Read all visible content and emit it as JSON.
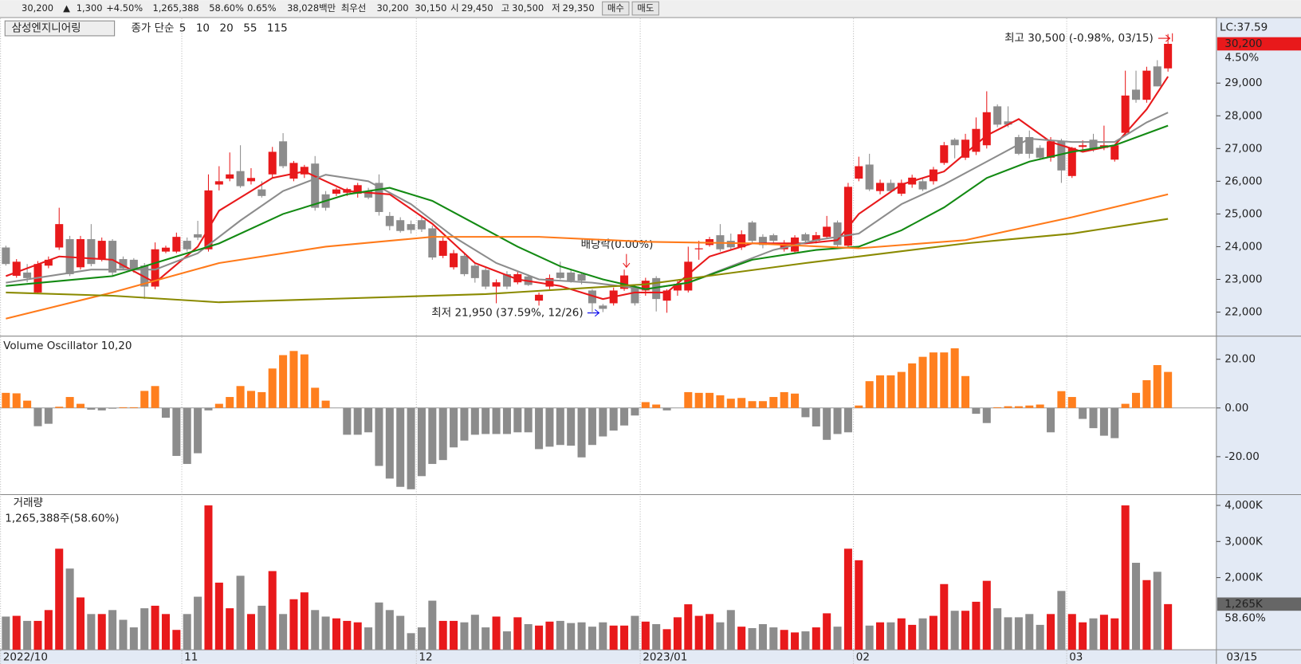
{
  "toolbar": {
    "price": "30,200",
    "arrow": "▲",
    "change": "1,300",
    "change_pct": "+4.50%",
    "volume": "1,265,388",
    "volume_ratio": "58.60%",
    "turnover": "0.65%",
    "amount": "38,028백만",
    "best_label": "최우선",
    "best_ask": "30,200",
    "best_bid": "30,150",
    "open_label": "시",
    "open": "29,450",
    "high_label": "고",
    "high": "30,500",
    "low_label": "저",
    "low": "29,350",
    "buy": "매수",
    "sell": "매도"
  },
  "chart_data": [
    {
      "type": "candlestick",
      "title": "삼성엔지니어링",
      "legend_label": "종가 단순",
      "open": [
        23975,
        23110,
        23210,
        22600,
        23420,
        23975,
        24230,
        23370,
        24230,
        23620,
        24180,
        23620,
        23600,
        23420,
        22780,
        23850,
        23850,
        24180,
        24380,
        23920,
        25900,
        26080,
        26310,
        26000,
        25750,
        26210,
        27220,
        26080,
        26210,
        26540,
        25600,
        25620,
        25650,
        25620,
        25700,
        25950,
        24940,
        24810,
        24690,
        24810,
        24560,
        23720,
        23370,
        23720,
        23420,
        23290,
        22780,
        23160,
        22910,
        23090,
        22350,
        22780,
        23210,
        23210,
        23160,
        22660,
        22200,
        22270,
        22710,
        22780,
        22660,
        23040,
        22350,
        22660,
        22660,
        23920,
        24050,
        24350,
        24180,
        23980,
        24740,
        24300,
        24350,
        23920,
        23850,
        24380,
        24180,
        24300,
        24740,
        24030,
        26080,
        26510,
        25700,
        25950,
        25620,
        25900,
        26000,
        26000,
        26560,
        27270,
        26720,
        26900,
        27100,
        28290,
        27830,
        27350,
        27350,
        27020,
        26720,
        27220,
        26160,
        27050,
        27270,
        27020,
        26660,
        27480,
        28800,
        28490,
        29510,
        29450
      ],
      "high": [
        24030,
        23620,
        23470,
        23560,
        23700,
        25190,
        24330,
        24330,
        24690,
        24280,
        24230,
        23700,
        23650,
        23500,
        24130,
        24030,
        24430,
        24280,
        24790,
        26210,
        26460,
        26880,
        27100,
        26400,
        26000,
        27050,
        27470,
        26620,
        26500,
        26770,
        25700,
        25800,
        25800,
        25950,
        25800,
        26210,
        25060,
        24900,
        24800,
        24950,
        24640,
        24300,
        23900,
        23800,
        23500,
        23400,
        23000,
        23250,
        23250,
        23150,
        22600,
        23150,
        23540,
        23300,
        23200,
        22700,
        22250,
        22750,
        23300,
        22850,
        23050,
        23100,
        22700,
        22950,
        24000,
        24180,
        24300,
        24690,
        24400,
        24500,
        24790,
        24380,
        24400,
        24200,
        24350,
        24430,
        24450,
        24940,
        24800,
        25950,
        26750,
        26840,
        26050,
        26050,
        26050,
        26200,
        26100,
        26440,
        27200,
        27320,
        27450,
        27950,
        28750,
        28350,
        28290,
        27420,
        27550,
        27100,
        27350,
        27300,
        27050,
        27250,
        27450,
        27700,
        27120,
        29380,
        29380,
        29500,
        29700,
        30500
      ],
      "low": [
        23420,
        23050,
        22910,
        22550,
        23340,
        23900,
        23100,
        23300,
        23400,
        23550,
        23100,
        23300,
        23200,
        22400,
        22700,
        23800,
        23800,
        23850,
        24200,
        23850,
        25720,
        26000,
        25800,
        25900,
        25500,
        26100,
        26400,
        26000,
        26100,
        25100,
        25100,
        25550,
        25550,
        25500,
        25450,
        24950,
        24500,
        24430,
        24400,
        24450,
        23600,
        23650,
        23300,
        23100,
        22900,
        22700,
        22270,
        22700,
        22850,
        22800,
        22200,
        22700,
        23000,
        22900,
        22850,
        21950,
        22000,
        22200,
        22650,
        22200,
        22500,
        22020,
        21980,
        22500,
        22600,
        23600,
        24000,
        23850,
        23900,
        23900,
        24100,
        23950,
        24100,
        23850,
        23800,
        24100,
        24100,
        24250,
        24000,
        23950,
        26000,
        25700,
        25600,
        25650,
        25550,
        25800,
        25700,
        25900,
        26500,
        26700,
        26650,
        26800,
        27000,
        27650,
        27650,
        26800,
        26700,
        26650,
        26600,
        25950,
        26100,
        26950,
        26900,
        26950,
        26600,
        27400,
        28400,
        28400,
        28900,
        29350
      ],
      "close": [
        23470,
        23540,
        23040,
        23470,
        23600,
        24690,
        23160,
        24230,
        23470,
        24180,
        23210,
        23340,
        23290,
        22780,
        23920,
        23970,
        24300,
        23920,
        24280,
        25720,
        26000,
        26210,
        25850,
        26100,
        25550,
        26900,
        26460,
        26560,
        26440,
        25190,
        25190,
        25750,
        25760,
        25880,
        25500,
        25060,
        24630,
        24480,
        24510,
        24530,
        23670,
        24180,
        23800,
        23160,
        23040,
        22780,
        22910,
        22780,
        23160,
        22830,
        22530,
        23040,
        23040,
        22960,
        22960,
        22270,
        22100,
        22660,
        23120,
        22270,
        22960,
        22400,
        22660,
        22860,
        23540,
        23950,
        24230,
        23920,
        23980,
        24380,
        24180,
        24050,
        24180,
        24100,
        24280,
        24180,
        24350,
        24610,
        24050,
        25830,
        26460,
        25750,
        25950,
        25700,
        25950,
        26110,
        25750,
        26360,
        27100,
        27100,
        27270,
        27600,
        28110,
        27730,
        27730,
        26840,
        26840,
        26720,
        27220,
        26330,
        27020,
        27100,
        26970,
        27100,
        27100,
        28620,
        28490,
        29380,
        28900,
        30200
      ],
      "up_color": "#e8191b",
      "down_color": "#8c8c8c",
      "ma": [
        {
          "name": "5",
          "color": "#e8191b",
          "x": [
            0,
            5,
            10,
            14,
            18,
            20,
            25,
            28,
            32,
            36,
            40,
            44,
            48,
            52,
            56,
            59,
            62,
            66,
            70,
            75,
            78,
            80,
            84,
            88,
            92,
            95,
            98,
            101,
            104,
            107,
            109
          ],
          "values": [
            23100,
            23700,
            23600,
            22900,
            24000,
            25100,
            26100,
            26300,
            25700,
            25600,
            24700,
            23500,
            23000,
            22800,
            22400,
            22600,
            22600,
            23700,
            24100,
            24100,
            24200,
            25000,
            25900,
            26300,
            27400,
            27900,
            27200,
            26900,
            27100,
            28200,
            29200
          ]
        },
        {
          "name": "10",
          "color": "#8c8c8c",
          "x": [
            0,
            8,
            14,
            18,
            22,
            26,
            30,
            34,
            38,
            42,
            46,
            50,
            55,
            60,
            64,
            68,
            72,
            76,
            80,
            84,
            88,
            92,
            96,
            100,
            104,
            107,
            109
          ],
          "values": [
            22900,
            23300,
            23300,
            23800,
            24800,
            25700,
            26200,
            26000,
            25300,
            24300,
            23500,
            23000,
            22900,
            22700,
            22900,
            23400,
            23900,
            24200,
            24400,
            25300,
            25900,
            26600,
            27300,
            27200,
            27200,
            27800,
            28100
          ]
        },
        {
          "name": "20",
          "color": "#138a13",
          "x": [
            0,
            10,
            16,
            20,
            26,
            32,
            36,
            40,
            44,
            48,
            52,
            56,
            60,
            64,
            70,
            76,
            80,
            84,
            88,
            92,
            96,
            100,
            104,
            109
          ],
          "values": [
            22800,
            23100,
            23700,
            24100,
            25000,
            25600,
            25800,
            25400,
            24700,
            24000,
            23400,
            23000,
            22700,
            22900,
            23600,
            23900,
            24000,
            24500,
            25200,
            26100,
            26600,
            26900,
            27100,
            27700
          ]
        },
        {
          "name": "55",
          "color": "#ff7a1a",
          "x": [
            0,
            10,
            20,
            30,
            40,
            50,
            60,
            70,
            80,
            90,
            100,
            109
          ],
          "values": [
            21800,
            22600,
            23500,
            24000,
            24300,
            24300,
            24150,
            24100,
            23950,
            24200,
            24900,
            25600
          ]
        },
        {
          "name": "115",
          "color": "#8a8a00",
          "x": [
            0,
            10,
            20,
            30,
            45,
            60,
            75,
            90,
            100,
            109
          ],
          "values": [
            22600,
            22500,
            22300,
            22400,
            22550,
            22850,
            23500,
            24100,
            24400,
            24850
          ]
        }
      ],
      "xlim": [
        -0.55,
        113.46
      ],
      "ylim": [
        21265,
        30978
      ],
      "yticks": [
        {
          "value": 22000,
          "label": "22,000"
        },
        {
          "value": 23000,
          "label": "23,000"
        },
        {
          "value": 24000,
          "label": "24,000"
        },
        {
          "value": 25000,
          "label": "25,000"
        },
        {
          "value": 26000,
          "label": "26,000"
        },
        {
          "value": 27000,
          "label": "27,000"
        },
        {
          "value": 28000,
          "label": "28,000"
        },
        {
          "value": 29000,
          "label": "29,000"
        }
      ],
      "lc_label": "LC:37.59",
      "last_label": "30,200",
      "last_change": "4.50%",
      "annotations": {
        "high": "최고 30,500 (-0.98%, 03/15)",
        "low": "최저 21,950 (37.59%, 12/26)",
        "dividend": "배당락(0.00%)"
      }
    },
    {
      "type": "bar",
      "title": "Volume Oscillator 10,20",
      "values": [
        6.2,
        6,
        3,
        -7.5,
        -6.5,
        0.5,
        4.5,
        1.7,
        -0.7,
        -1,
        -0.3,
        0.3,
        0.3,
        7,
        9,
        -4,
        -19.7,
        -23,
        -18.6,
        -1,
        1.7,
        4.5,
        9,
        7,
        6.5,
        16.2,
        21.7,
        23.4,
        22,
        8.3,
        3,
        0,
        -11,
        -11,
        -10,
        -23.8,
        -29,
        -32.4,
        -33.4,
        -28,
        -23,
        -21.4,
        -16.2,
        -13.4,
        -11,
        -10.7,
        -10.7,
        -10.7,
        -10,
        -10,
        -16.9,
        -15.9,
        -15.2,
        -15.5,
        -20.3,
        -15.2,
        -11.7,
        -9.3,
        -7.2,
        -3.1,
        2.4,
        1.4,
        -1,
        0,
        6.5,
        6.2,
        6.2,
        5.2,
        3.8,
        4.1,
        2.8,
        2.8,
        4.5,
        6.5,
        5.9,
        -3.8,
        -7.6,
        -13.1,
        -10.7,
        -10,
        1,
        11,
        13.4,
        13.4,
        14.8,
        18.3,
        21,
        22.8,
        22.8,
        24.5,
        13.1,
        -2.4,
        -6.2,
        0.3,
        0.7,
        0.7,
        1,
        1.4,
        -10,
        6.9,
        4.5,
        -4.5,
        -8.3,
        -11.4,
        -12.4,
        1.7,
        6.2,
        11.4,
        17.6,
        14.8
      ],
      "pos_color": "#ff7f1e",
      "neg_color": "#8c8c8c",
      "ylim": [
        -35.25,
        29.15
      ],
      "yticks": [
        {
          "value": -20,
          "label": "-20.00"
        },
        {
          "value": 0,
          "label": "0.00"
        },
        {
          "value": 20,
          "label": "20.00"
        }
      ]
    },
    {
      "type": "bar",
      "title": "거래량",
      "subtitle": "1,265,388주(58.60%)",
      "values": [
        920,
        940,
        800,
        800,
        1100,
        2800,
        2250,
        1450,
        990,
        990,
        1100,
        830,
        620,
        1150,
        1220,
        990,
        550,
        990,
        1470,
        4000,
        1860,
        1150,
        2050,
        990,
        1220,
        2180,
        990,
        1400,
        1590,
        1100,
        920,
        870,
        800,
        760,
        620,
        1310,
        1100,
        940,
        460,
        620,
        1360,
        800,
        800,
        760,
        970,
        620,
        920,
        510,
        900,
        710,
        670,
        780,
        800,
        740,
        760,
        640,
        760,
        670,
        670,
        940,
        780,
        710,
        570,
        900,
        1260,
        940,
        990,
        760,
        1100,
        640,
        600,
        710,
        620,
        550,
        480,
        510,
        620,
        1010,
        640,
        2800,
        2480,
        670,
        760,
        760,
        870,
        690,
        870,
        940,
        1820,
        1080,
        1080,
        1330,
        1910,
        1150,
        900,
        900,
        990,
        690,
        990,
        1630,
        990,
        760,
        870,
        970,
        870,
        4000,
        2410,
        1930,
        2160,
        1265
      ],
      "ylim": [
        0,
        4276
      ],
      "yticks": [
        {
          "value": 2000,
          "label": "2,000K"
        },
        {
          "value": 3000,
          "label": "3,000K"
        },
        {
          "value": 4000,
          "label": "4,000K"
        }
      ],
      "last_label": "1,265K",
      "last_ratio": "58.60%",
      "xticks": [
        {
          "value": -0.5,
          "label": "2022/10"
        },
        {
          "value": 16.5,
          "label": "11"
        },
        {
          "value": 38.5,
          "label": "12"
        },
        {
          "value": 59.5,
          "label": "2023/01"
        },
        {
          "value": 79.5,
          "label": "02"
        },
        {
          "value": 99.5,
          "label": "03"
        }
      ],
      "last_date": "03/15"
    }
  ]
}
